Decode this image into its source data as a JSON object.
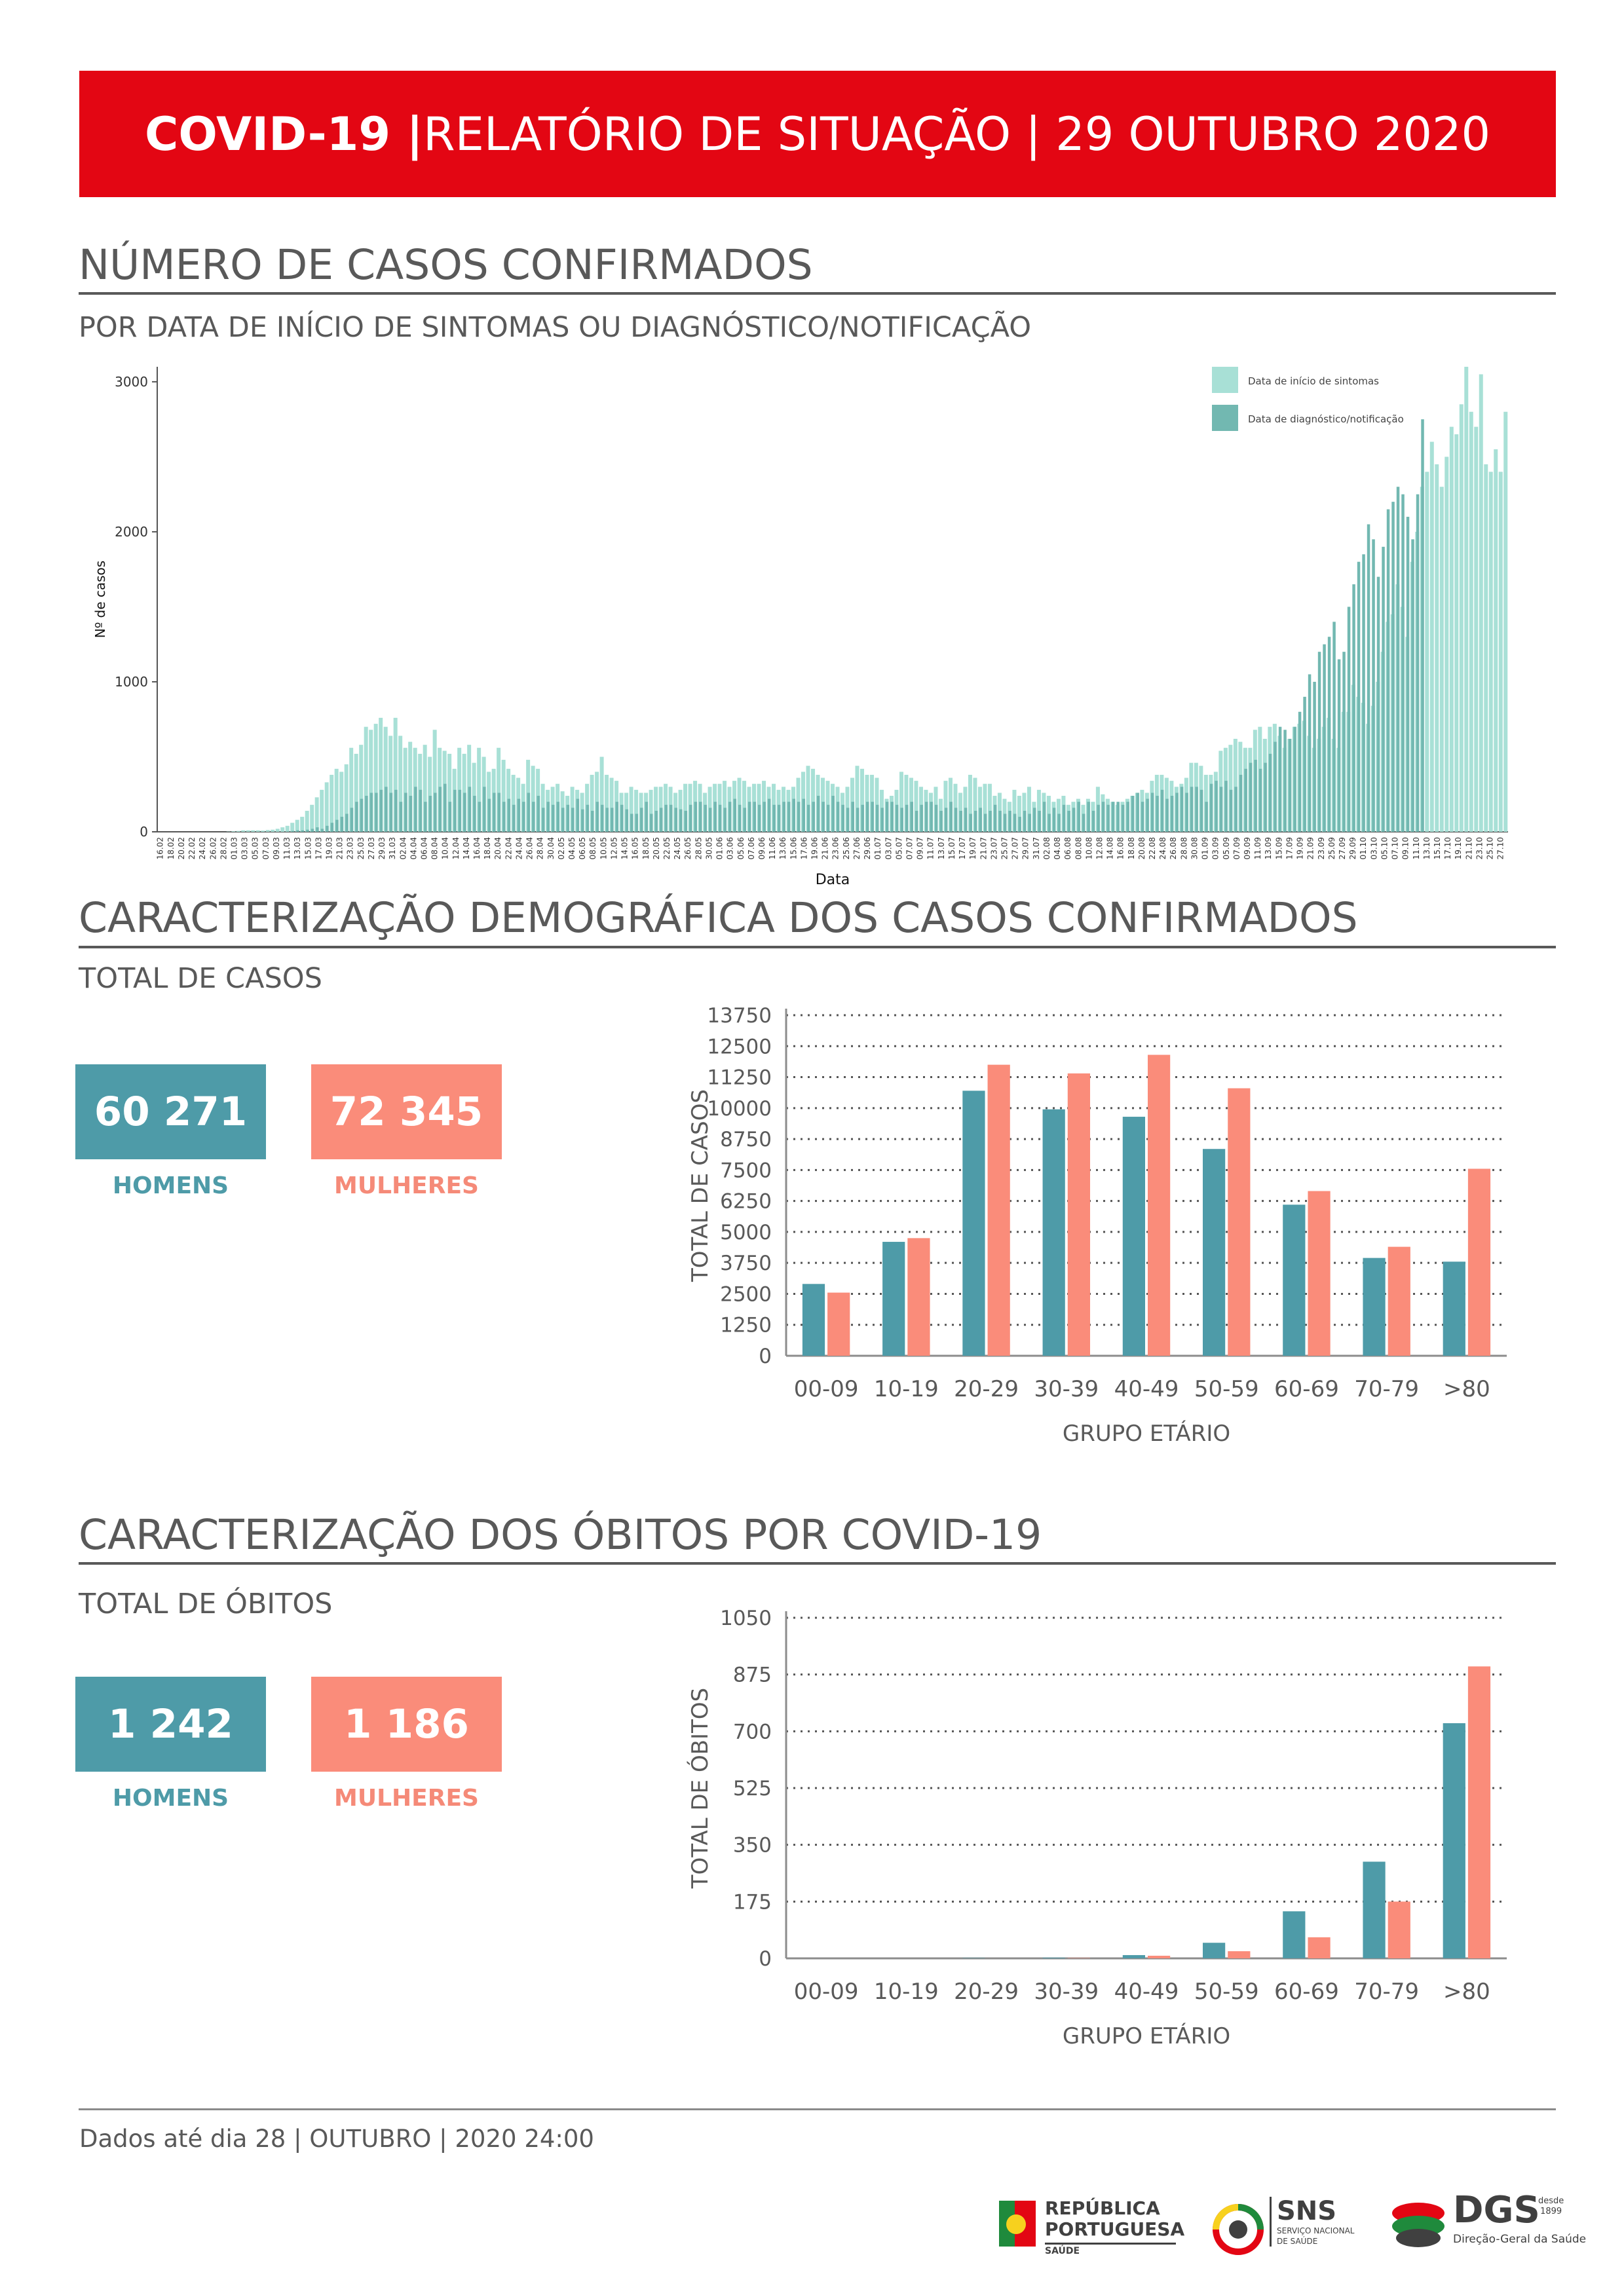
{
  "header": {
    "title_bold": "COVID-19 |",
    "title_rest": " RELATÓRIO DE SITUAÇÃO | 29 OUTUBRO 2020",
    "color": "#e30613"
  },
  "cases_section": {
    "title": "NÚMERO DE CASOS CONFIRMADOS",
    "subtitle": "POR DATA DE INÍCIO DE SINTOMAS OU DIAGNÓSTICO/NOTIFICAÇÃO"
  },
  "demographics_section": {
    "title": "CARACTERIZAÇÃO DEMOGRÁFICA DOS CASOS CONFIRMADOS",
    "subtitle": "TOTAL DE CASOS",
    "men_value": "60 271",
    "women_value": "72 345",
    "men_label": "HOMENS",
    "women_label": "MULHERES"
  },
  "deaths_section": {
    "title": "CARACTERIZAÇÃO DOS ÓBITOS POR COVID-19",
    "subtitle": "TOTAL DE ÓBITOS",
    "men_value": "1 242",
    "women_value": "1 186",
    "men_label": "HOMENS",
    "women_label": "MULHERES"
  },
  "footer": {
    "text": "Dados até dia 28 | OUTUBRO | 2020 24:00"
  },
  "logos": {
    "republica_line1": "REPÚBLICA",
    "republica_line2": "PORTUGUESA",
    "republica_line3": "SAÚDE",
    "sns": "SNS",
    "sns_sub1": "SERVIÇO NACIONAL",
    "sns_sub2": "DE SAÚDE",
    "dgs": "DGS",
    "dgs_since1": "desde",
    "dgs_since2": "1899",
    "dgs_sub": "Direção-Geral da Saúde"
  },
  "colors": {
    "men": "#4e9ba8",
    "women": "#fa8c7a",
    "symptoms": "#a8e0d6",
    "notification": "#72b8b1"
  },
  "chart_data": [
    {
      "type": "bar",
      "ylabel": "Nº de casos",
      "xlabel": "Data",
      "ylim": [
        0,
        3100
      ],
      "yticks": [
        0,
        1000,
        2000,
        3000
      ],
      "legend_position": "top-right",
      "series": [
        {
          "name": "Data de início de sintomas",
          "color": "#a8e0d6"
        },
        {
          "name": "Data de diagnóstico/notificação",
          "color": "#72b8b1"
        }
      ],
      "x_start": "2020-02-16",
      "tick_labels": [
        "16.02",
        "18.02",
        "20.02",
        "22.02",
        "24.02",
        "26.02",
        "28.02",
        "01.03",
        "03.03",
        "05.03",
        "07.03",
        "09.03",
        "11.03",
        "13.03",
        "15.03",
        "17.03",
        "19.03",
        "21.03",
        "23.03",
        "25.03",
        "27.03",
        "29.03",
        "31.03",
        "02.04",
        "04.04",
        "06.04",
        "08.04",
        "10.04",
        "12.04",
        "14.04",
        "16.04",
        "18.04",
        "20.04",
        "22.04",
        "24.04",
        "26.04",
        "28.04",
        "30.04",
        "02.05",
        "04.05",
        "06.05",
        "08.05",
        "10.05",
        "12.05",
        "14.05",
        "16.05",
        "18.05",
        "20.05",
        "22.05",
        "24.05",
        "26.05",
        "28.05",
        "30.05",
        "01.06",
        "03.06",
        "05.06",
        "07.06",
        "09.06",
        "11.06",
        "13.06",
        "15.06",
        "17.06",
        "19.06",
        "21.06",
        "23.06",
        "25.06",
        "27.06",
        "29.06",
        "01.07",
        "03.07",
        "05.07",
        "07.07",
        "09.07",
        "11.07",
        "13.07",
        "15.07",
        "17.07",
        "19.07",
        "21.07",
        "23.07",
        "25.07",
        "27.07",
        "29.07",
        "31.07",
        "02.08",
        "04.08",
        "06.08",
        "08.08",
        "10.08",
        "12.08",
        "14.08",
        "16.08",
        "18.08",
        "20.08",
        "22.08",
        "24.08",
        "26.08",
        "28.08",
        "30.08",
        "01.09",
        "03.09",
        "05.09",
        "07.09",
        "09.09",
        "11.09",
        "13.09",
        "15.09",
        "17.09",
        "19.09",
        "21.09",
        "23.09",
        "25.09",
        "27.09",
        "29.09",
        "01.10",
        "03.10",
        "05.10",
        "07.10",
        "09.10",
        "11.10",
        "13.10",
        "15.10",
        "17.10",
        "19.10",
        "21.10",
        "23.10",
        "25.10",
        "27.10"
      ],
      "symptoms": [
        0,
        0,
        0,
        0,
        0,
        0,
        0,
        0,
        0,
        0,
        0,
        0,
        0,
        0,
        2,
        4,
        6,
        10,
        10,
        10,
        10,
        8,
        12,
        14,
        20,
        30,
        40,
        60,
        80,
        100,
        140,
        180,
        230,
        280,
        330,
        380,
        420,
        400,
        450,
        560,
        520,
        580,
        700,
        680,
        720,
        760,
        700,
        640,
        760,
        640,
        560,
        600,
        560,
        520,
        580,
        500,
        680,
        560,
        540,
        520,
        420,
        560,
        520,
        580,
        460,
        560,
        500,
        400,
        420,
        560,
        480,
        420,
        380,
        360,
        320,
        480,
        440,
        420,
        320,
        280,
        300,
        320,
        270,
        240,
        300,
        280,
        260,
        320,
        380,
        400,
        500,
        380,
        360,
        340,
        260,
        260,
        300,
        280,
        260,
        260,
        280,
        300,
        300,
        320,
        300,
        260,
        280,
        320,
        320,
        340,
        320,
        260,
        300,
        320,
        320,
        340,
        300,
        340,
        360,
        340,
        300,
        320,
        320,
        340,
        300,
        320,
        280,
        300,
        280,
        300,
        360,
        400,
        440,
        420,
        380,
        360,
        340,
        320,
        300,
        260,
        300,
        360,
        440,
        420,
        380,
        380,
        360,
        280,
        220,
        240,
        280,
        400,
        380,
        360,
        340,
        300,
        280,
        260,
        300,
        220,
        340,
        360,
        320,
        260,
        300,
        380,
        360,
        300,
        320,
        320,
        240,
        260,
        220,
        200,
        280,
        240,
        260,
        300,
        200,
        280,
        260,
        240,
        200,
        220,
        240,
        180,
        200,
        220,
        180,
        220,
        200,
        300,
        250,
        220,
        200,
        180,
        200,
        220,
        240,
        260,
        280,
        260,
        340,
        380,
        380,
        360,
        340,
        300,
        320,
        360,
        460,
        460,
        440,
        380,
        380,
        400,
        540,
        560,
        580,
        620,
        600,
        560,
        560,
        680,
        700,
        620,
        700,
        720,
        640,
        560,
        620,
        700,
        720,
        740,
        640,
        560,
        620,
        700,
        760,
        620,
        560,
        800,
        800,
        980,
        900,
        860,
        720,
        840,
        1000,
        1200,
        1400,
        1450,
        1650,
        1500,
        1300,
        1800,
        2000,
        2300,
        2400,
        2600,
        2450,
        2300,
        2500,
        2700,
        2650,
        2850,
        3100,
        2800,
        2700,
        3050,
        2450,
        2400,
        2550,
        2400,
        2800
      ],
      "notification": [
        0,
        0,
        0,
        0,
        0,
        0,
        0,
        0,
        0,
        0,
        0,
        0,
        0,
        0,
        0,
        0,
        0,
        0,
        0,
        0,
        0,
        0,
        0,
        0,
        0,
        0,
        2,
        6,
        10,
        10,
        14,
        20,
        30,
        20,
        40,
        60,
        80,
        100,
        120,
        160,
        200,
        220,
        240,
        260,
        260,
        280,
        300,
        260,
        280,
        200,
        260,
        240,
        300,
        280,
        200,
        240,
        260,
        300,
        320,
        200,
        280,
        280,
        260,
        300,
        240,
        200,
        300,
        220,
        260,
        260,
        200,
        220,
        180,
        220,
        200,
        260,
        200,
        240,
        160,
        200,
        180,
        200,
        160,
        180,
        160,
        220,
        150,
        180,
        140,
        200,
        180,
        160,
        160,
        200,
        180,
        150,
        120,
        120,
        160,
        200,
        120,
        140,
        160,
        180,
        180,
        160,
        150,
        140,
        180,
        200,
        200,
        180,
        160,
        200,
        180,
        160,
        200,
        220,
        180,
        160,
        200,
        200,
        180,
        200,
        220,
        180,
        180,
        200,
        200,
        220,
        200,
        220,
        180,
        200,
        240,
        200,
        180,
        240,
        200,
        180,
        160,
        200,
        160,
        180,
        200,
        200,
        180,
        160,
        200,
        200,
        180,
        160,
        180,
        200,
        140,
        180,
        200,
        200,
        180,
        140,
        160,
        200,
        160,
        140,
        160,
        120,
        140,
        160,
        120,
        140,
        180,
        140,
        120,
        140,
        120,
        100,
        140,
        120,
        160,
        140,
        200,
        120,
        160,
        120,
        180,
        140,
        160,
        200,
        120,
        200,
        140,
        180,
        200,
        180,
        200,
        200,
        180,
        200,
        240,
        260,
        200,
        220,
        260,
        240,
        280,
        220,
        240,
        260,
        300,
        260,
        300,
        300,
        280,
        200,
        320,
        340,
        300,
        340,
        280,
        300,
        380,
        420,
        460,
        480,
        420,
        460,
        520,
        600,
        700,
        680,
        620,
        700,
        800,
        900,
        1050,
        1000,
        1200,
        1250,
        1300,
        1400,
        1150,
        1200,
        1500,
        1650,
        1800,
        1850,
        2050,
        1950,
        1700,
        1900,
        2150,
        2200,
        2300,
        2250,
        2100,
        1950,
        2250,
        2750
      ],
      "estimated": true
    },
    {
      "type": "bar",
      "title": "",
      "xlabel": "GRUPO ETÁRIO",
      "ylabel": "TOTAL DE CASOS",
      "ylim": [
        0,
        13750
      ],
      "yticks": [
        0,
        1250,
        2500,
        3750,
        5000,
        6250,
        7500,
        8750,
        10000,
        11250,
        12500,
        13750
      ],
      "categories": [
        "00-09",
        "10-19",
        "20-29",
        "30-39",
        "40-49",
        "50-59",
        "60-69",
        "70-79",
        ">80"
      ],
      "series": [
        {
          "name": "HOMENS",
          "color": "#4e9ba8",
          "values": [
            2900,
            4600,
            10700,
            9950,
            9650,
            8350,
            6100,
            3950,
            3800
          ]
        },
        {
          "name": "MULHERES",
          "color": "#fa8c7a",
          "values": [
            2550,
            4750,
            11750,
            11400,
            12150,
            10800,
            6650,
            4400,
            7550
          ]
        }
      ]
    },
    {
      "type": "bar",
      "title": "",
      "xlabel": "GRUPO ETÁRIO",
      "ylabel": "TOTAL DE ÓBITOS",
      "ylim": [
        0,
        1050
      ],
      "yticks": [
        0,
        175,
        350,
        525,
        700,
        875,
        1050
      ],
      "categories": [
        "00-09",
        "10-19",
        "20-29",
        "30-39",
        "40-49",
        "50-59",
        "60-69",
        "70-79",
        ">80"
      ],
      "series": [
        {
          "name": "HOMENS",
          "color": "#4e9ba8",
          "values": [
            0,
            0,
            1,
            2,
            10,
            48,
            145,
            298,
            725
          ]
        },
        {
          "name": "MULHERES",
          "color": "#fa8c7a",
          "values": [
            0,
            0,
            0,
            1,
            8,
            22,
            65,
            175,
            900
          ]
        }
      ]
    }
  ]
}
